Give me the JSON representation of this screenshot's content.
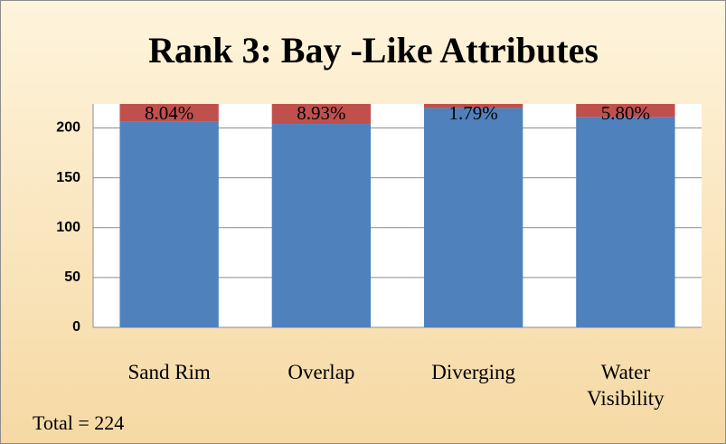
{
  "chart_data": {
    "type": "stacked_bar",
    "title": "Rank 3: Bay -Like Attributes",
    "categories": [
      "Sand Rim",
      "Overlap",
      "Diverging",
      "Water Visibility"
    ],
    "series": [
      {
        "name": "Blue",
        "color": "#4f81bd",
        "values": [
          206,
          204,
          220,
          211
        ]
      },
      {
        "name": "Red",
        "color": "#c0504d",
        "values": [
          18,
          20,
          4,
          13
        ],
        "value_labels": [
          "8.04%",
          "8.93%",
          "1.79%",
          "5.80%"
        ]
      }
    ],
    "ylim": [
      0,
      224
    ],
    "yticks": [
      0,
      50,
      100,
      150,
      200
    ],
    "grid": true,
    "annotation": "Total = 224"
  }
}
